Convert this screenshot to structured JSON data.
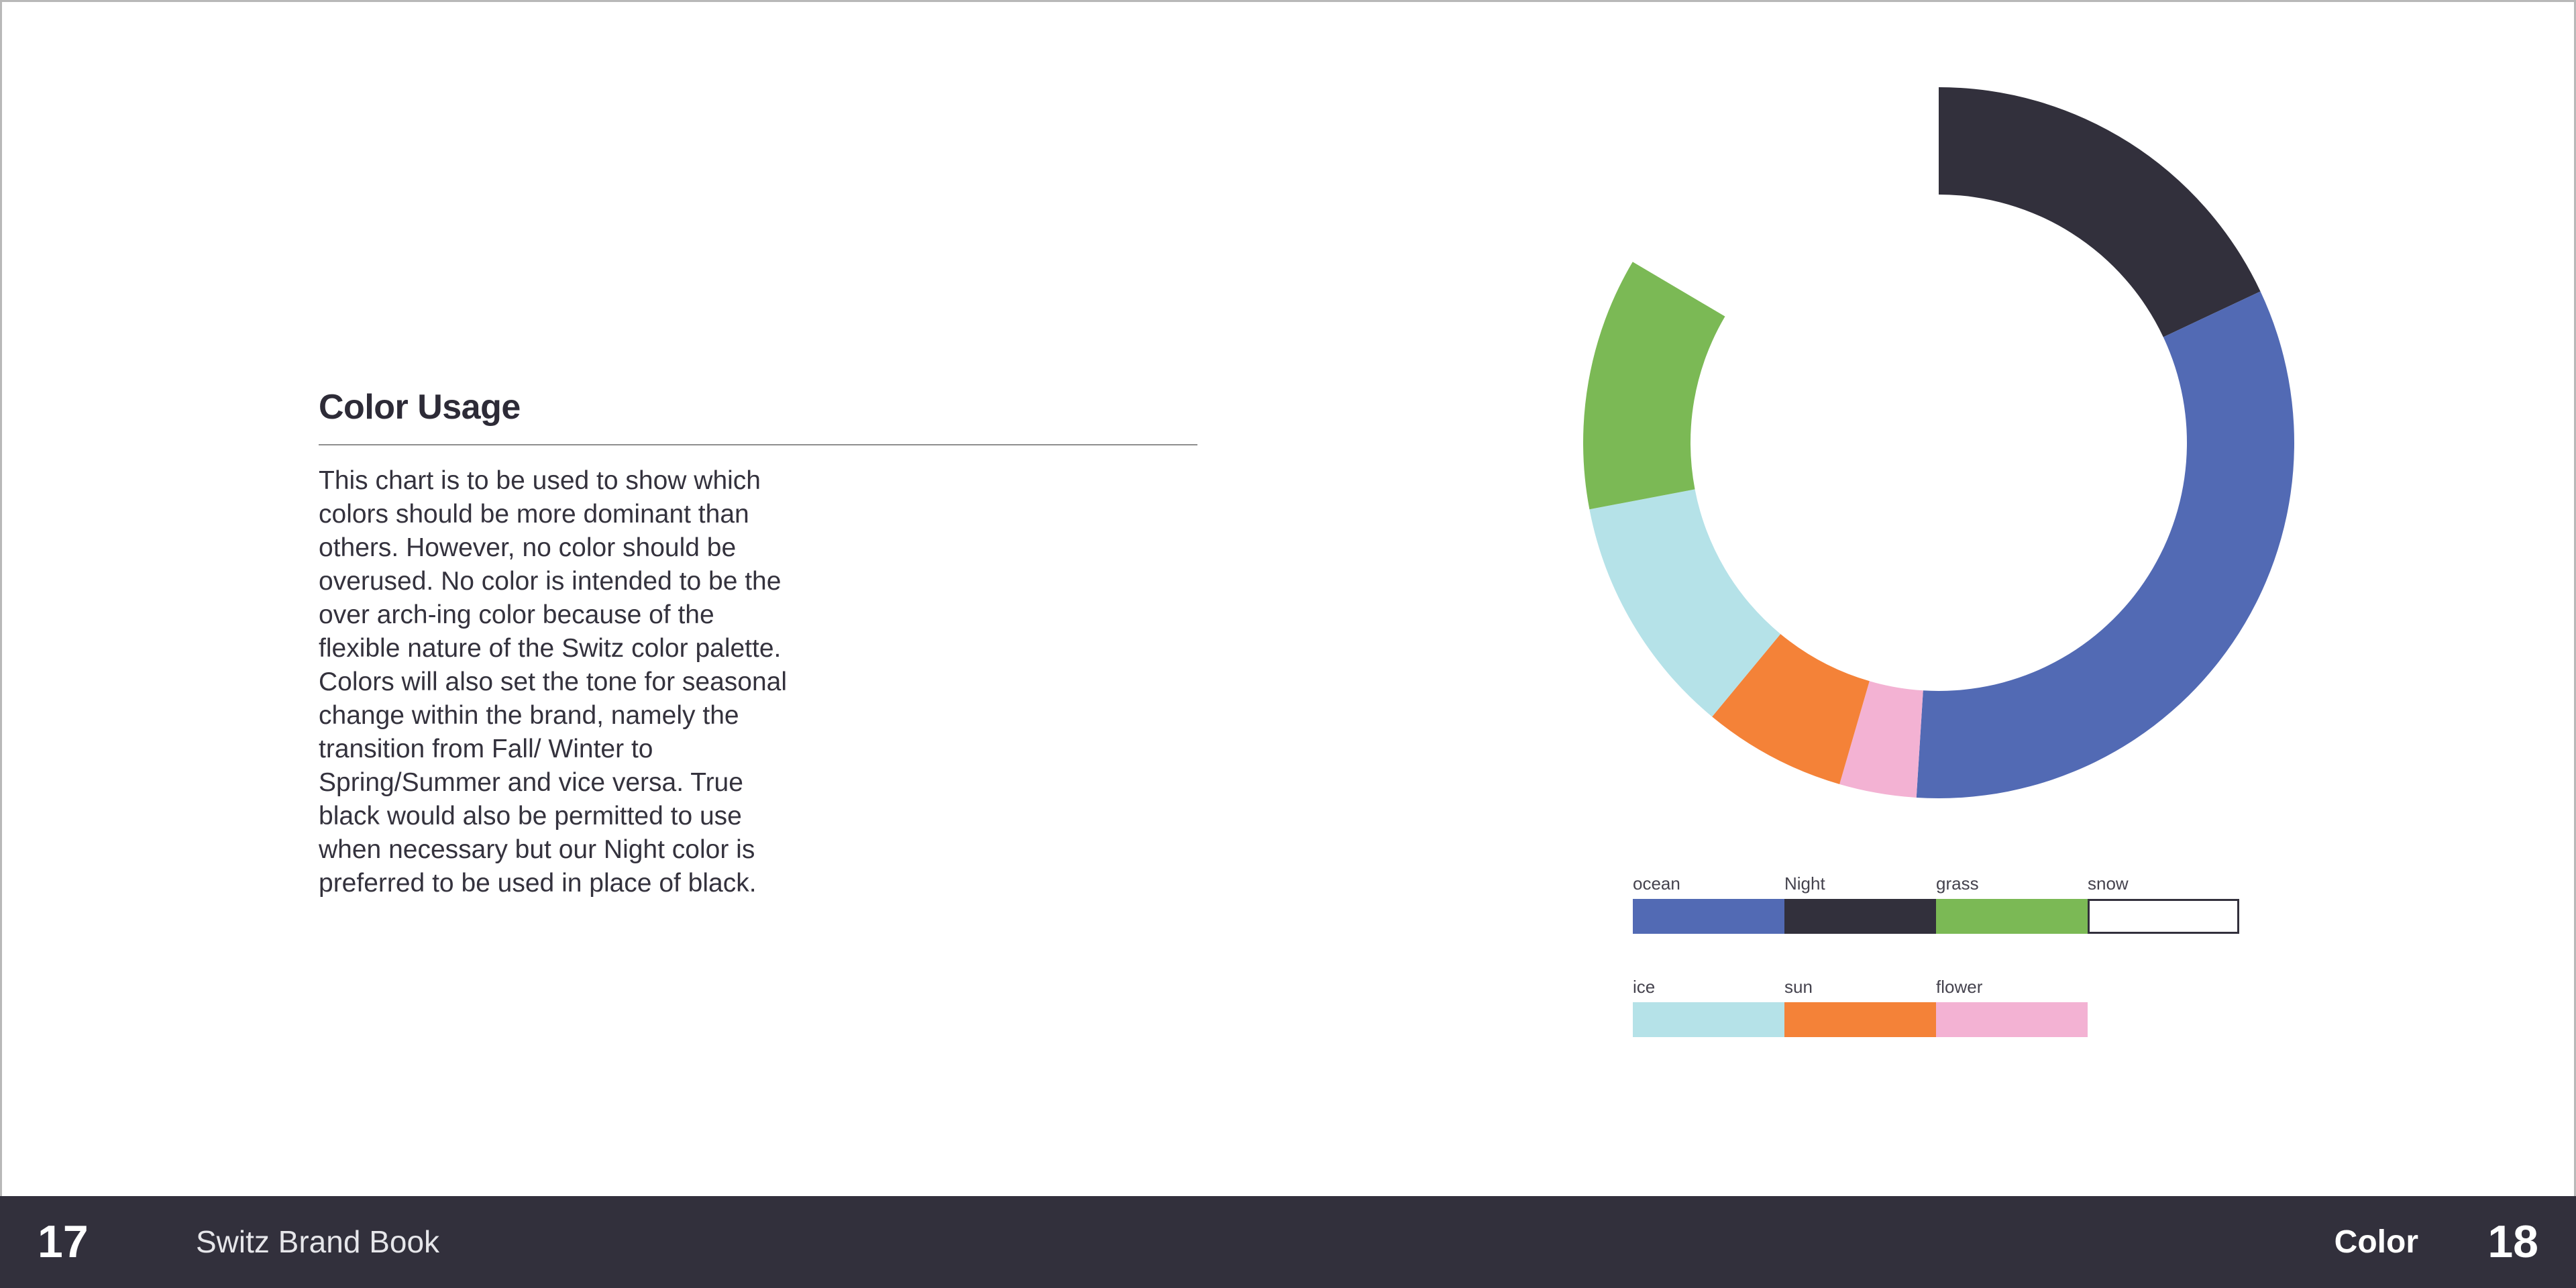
{
  "content": {
    "title": "Color Usage",
    "body": "This chart is to be used to show which colors should be more dominant than others. However, no color should be overused. No color is intended to be the over arch-ing color because of the flexible nature of the Switz color palette. Colors will also set the tone for seasonal change within the brand, namely the transition from Fall/ Winter to Spring/Summer and vice versa. True black would also be permitted to use when necessary but our Night color is preferred to be used in place of black."
  },
  "palette": [
    {
      "name": "ocean",
      "color": "#526ab4"
    },
    {
      "name": "Night",
      "color": "#32303c"
    },
    {
      "name": "grass",
      "color": "#7bb955"
    },
    {
      "name": "snow",
      "color": "#ffffff"
    },
    {
      "name": "ice",
      "color": "#b5e2e8"
    },
    {
      "name": "sun",
      "color": "#f48238"
    },
    {
      "name": "flower",
      "color": "#f3b2d3"
    }
  ],
  "chart_data": {
    "type": "pie",
    "style": "donut",
    "unit": "percent",
    "slices": [
      {
        "name": "Night",
        "value": 18,
        "color": "#32303c"
      },
      {
        "name": "ocean",
        "value": 33,
        "color": "#526ab4"
      },
      {
        "name": "flower",
        "value": 3.5,
        "color": "#f3b2d3"
      },
      {
        "name": "sun",
        "value": 6.5,
        "color": "#f48238"
      },
      {
        "name": "ice",
        "value": 11,
        "color": "#b5e2e8"
      },
      {
        "name": "grass",
        "value": 11.5,
        "color": "#7bb955"
      },
      {
        "name": "snow",
        "value": 16.5,
        "color": "#ffffff"
      }
    ]
  },
  "footer": {
    "left_page": "17",
    "book_title": "Switz Brand Book",
    "section": "Color",
    "right_page": "18"
  }
}
